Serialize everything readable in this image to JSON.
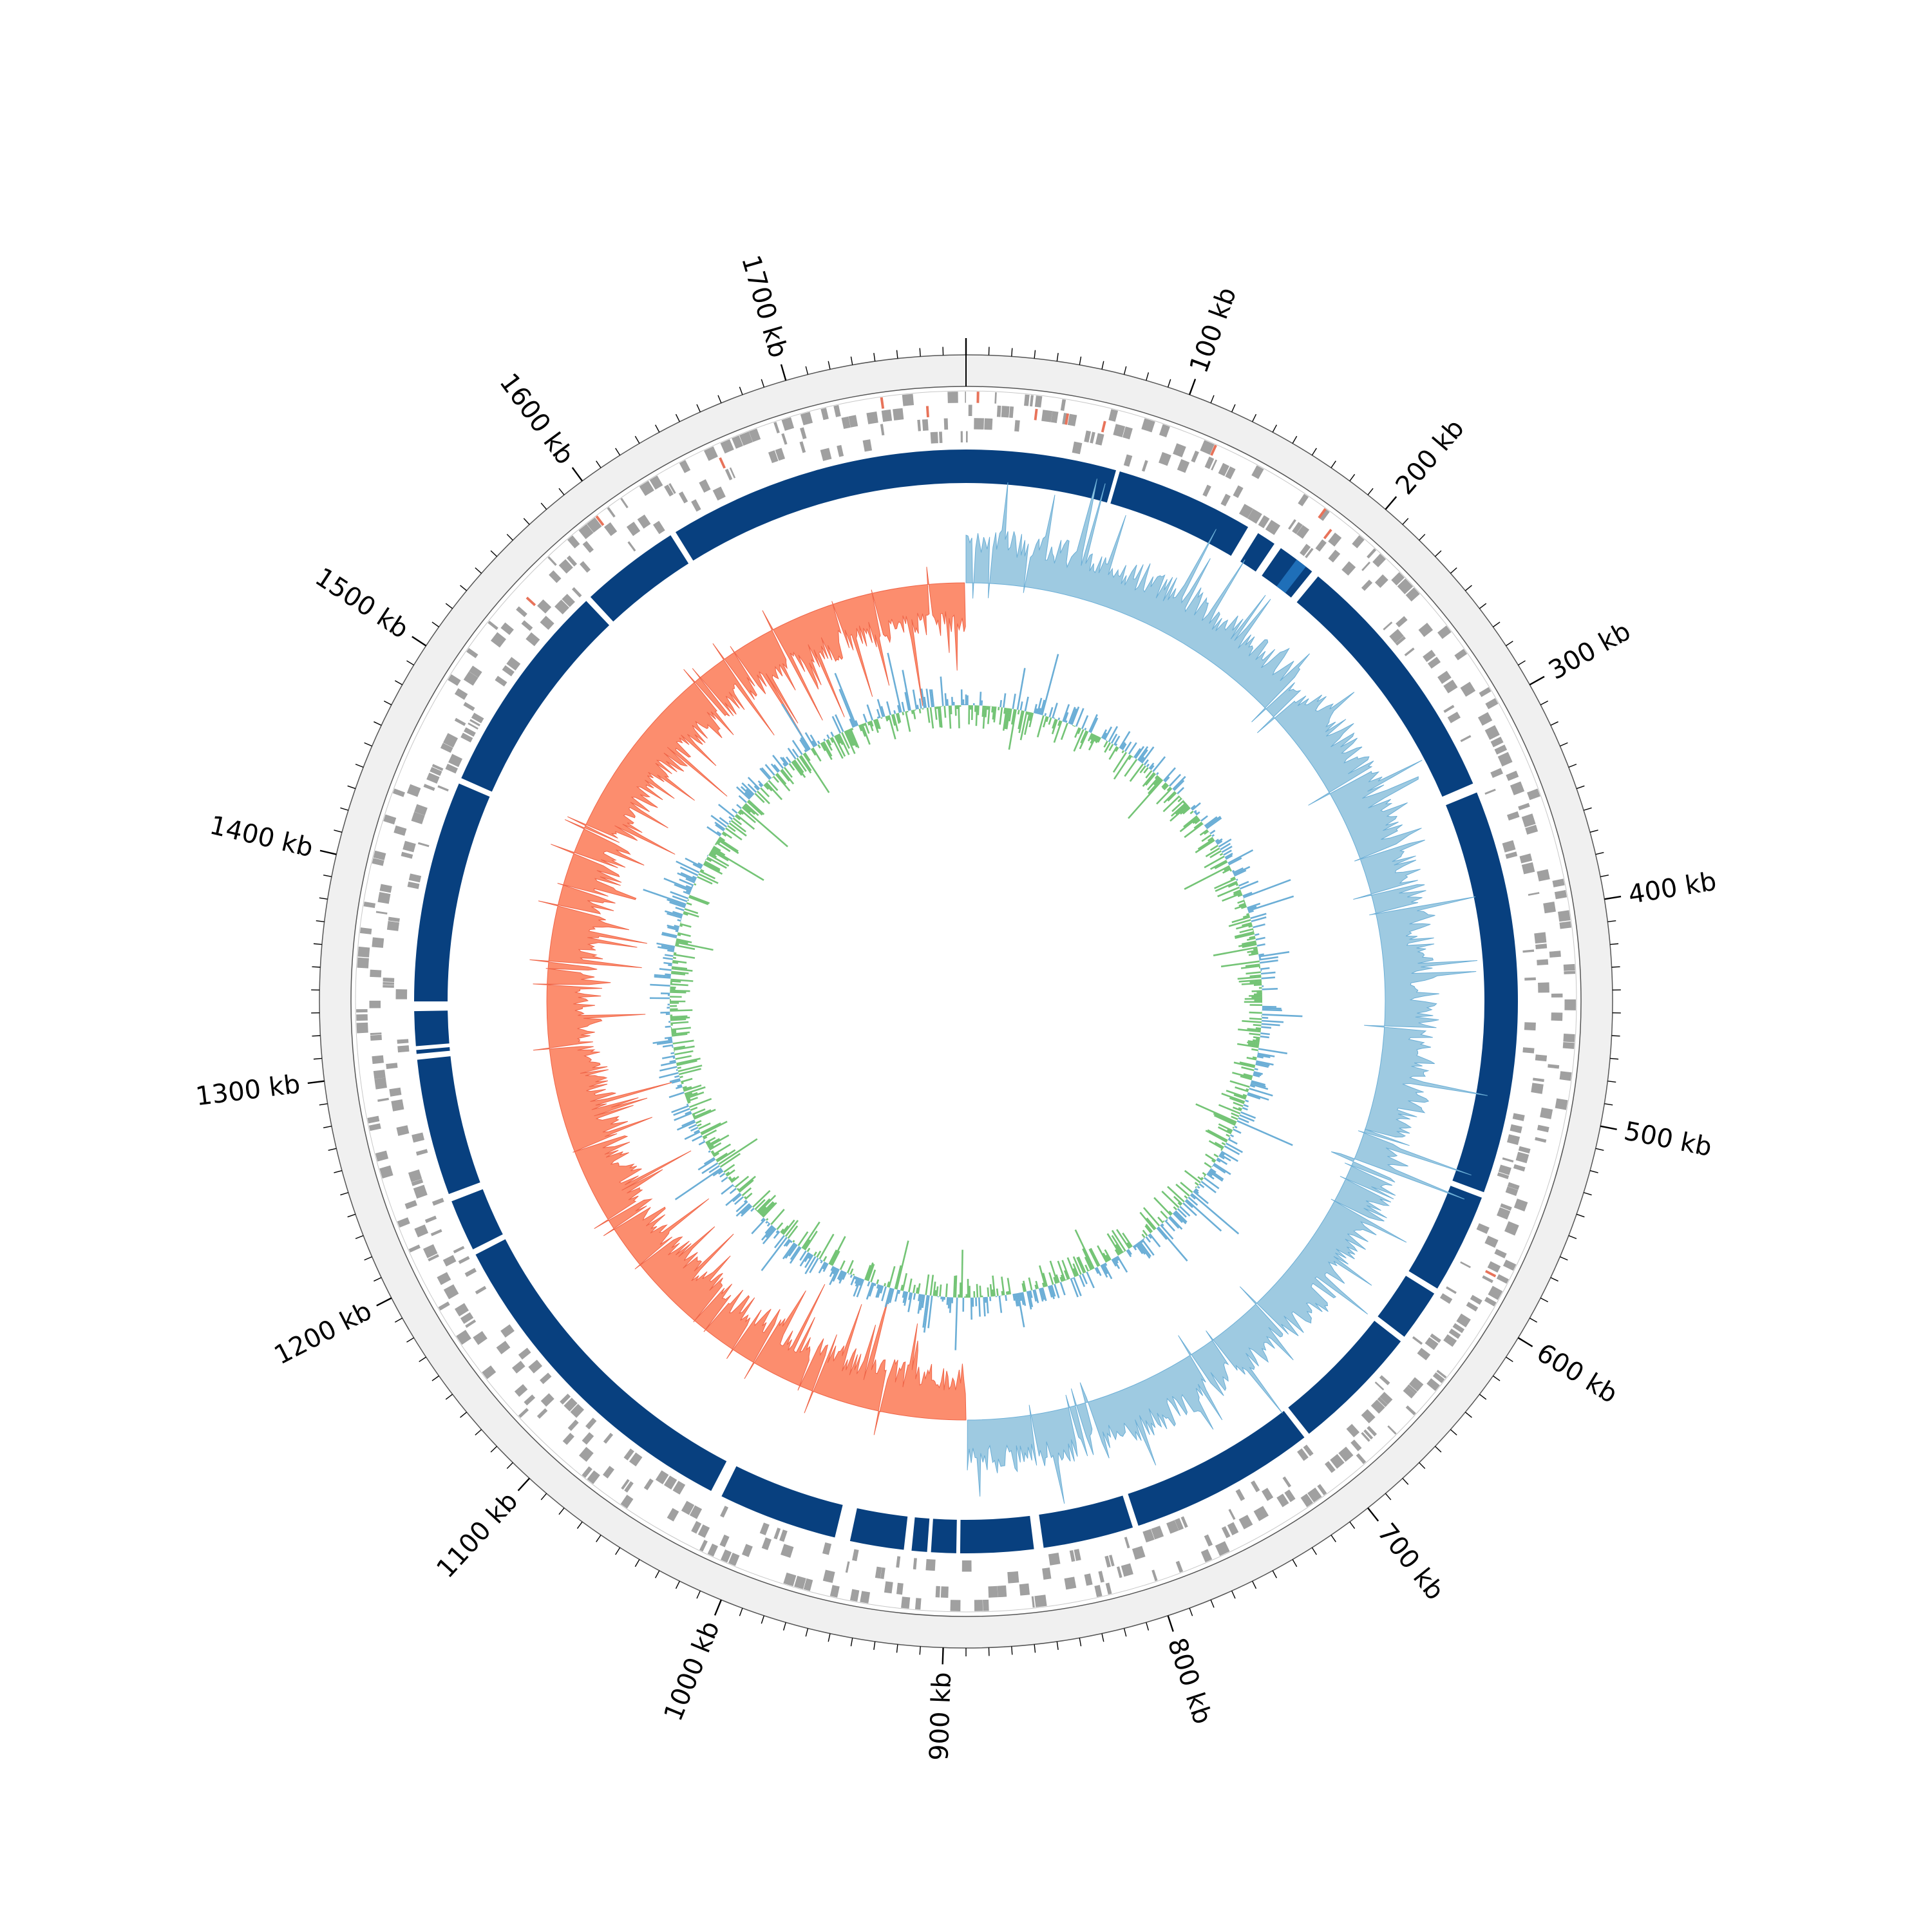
{
  "genome": {
    "size_kb": 1780,
    "label_unit": "kb",
    "major_tick_kb": 100,
    "minor_tick_kb": 10
  },
  "colors": {
    "background": "#ffffff",
    "outer_band": "#f0f0f0",
    "ring_line": "#555555",
    "tick": "#000000",
    "feature_gray": "#a0a0a0",
    "feature_red": "#e8735a",
    "contig_blue": "#08407f",
    "contig_highlight": "#1f6fb8",
    "gc_skew_positive": "#9ecae1",
    "gc_skew_negative": "#fc8d6e",
    "gc_skew_line_pos": "#6baed6",
    "gc_skew_line_neg": "#ef6548",
    "gc_content_green": "#74c476",
    "gc_content_blue": "#6baed6"
  },
  "tick_labels": [
    {
      "kb": 100,
      "text": "100 kb"
    },
    {
      "kb": 200,
      "text": "200 kb"
    },
    {
      "kb": 300,
      "text": "300 kb"
    },
    {
      "kb": 400,
      "text": "400 kb"
    },
    {
      "kb": 500,
      "text": "500 kb"
    },
    {
      "kb": 600,
      "text": "600 kb"
    },
    {
      "kb": 700,
      "text": "700 kb"
    },
    {
      "kb": 800,
      "text": "800 kb"
    },
    {
      "kb": 900,
      "text": "900 kb"
    },
    {
      "kb": 1000,
      "text": "1000 kb"
    },
    {
      "kb": 1100,
      "text": "1100 kb"
    },
    {
      "kb": 1200,
      "text": "1200 kb"
    },
    {
      "kb": 1300,
      "text": "1300 kb"
    },
    {
      "kb": 1400,
      "text": "1400 kb"
    },
    {
      "kb": 1500,
      "text": "1500 kb"
    },
    {
      "kb": 1600,
      "text": "1600 kb"
    },
    {
      "kb": 1700,
      "text": "1700 kb"
    }
  ],
  "contigs_kb": [
    [
      0,
      78
    ],
    [
      80,
      152
    ],
    [
      158,
      168
    ],
    [
      172,
      192
    ],
    [
      196,
      330
    ],
    [
      335,
      545
    ],
    [
      548,
      600
    ],
    [
      603,
      630
    ],
    [
      633,
      700
    ],
    [
      703,
      800
    ],
    [
      803,
      850
    ],
    [
      855,
      893
    ],
    [
      895,
      908
    ],
    [
      910,
      918
    ],
    [
      922,
      950
    ],
    [
      958,
      1020
    ],
    [
      1026,
      1200
    ],
    [
      1203,
      1230
    ],
    [
      1234,
      1305
    ],
    [
      1308,
      1310
    ],
    [
      1312,
      1330
    ],
    [
      1335,
      1450
    ],
    [
      1453,
      1565
    ],
    [
      1568,
      1620
    ],
    [
      1623,
      1780
    ]
  ],
  "contig_highlights_kb": [
    [
      182,
      188
    ]
  ],
  "red_features_kb": [
    5,
    33,
    48,
    66,
    119,
    178,
    186,
    580,
    1545,
    1595,
    1659,
    1740,
    1761
  ]
}
